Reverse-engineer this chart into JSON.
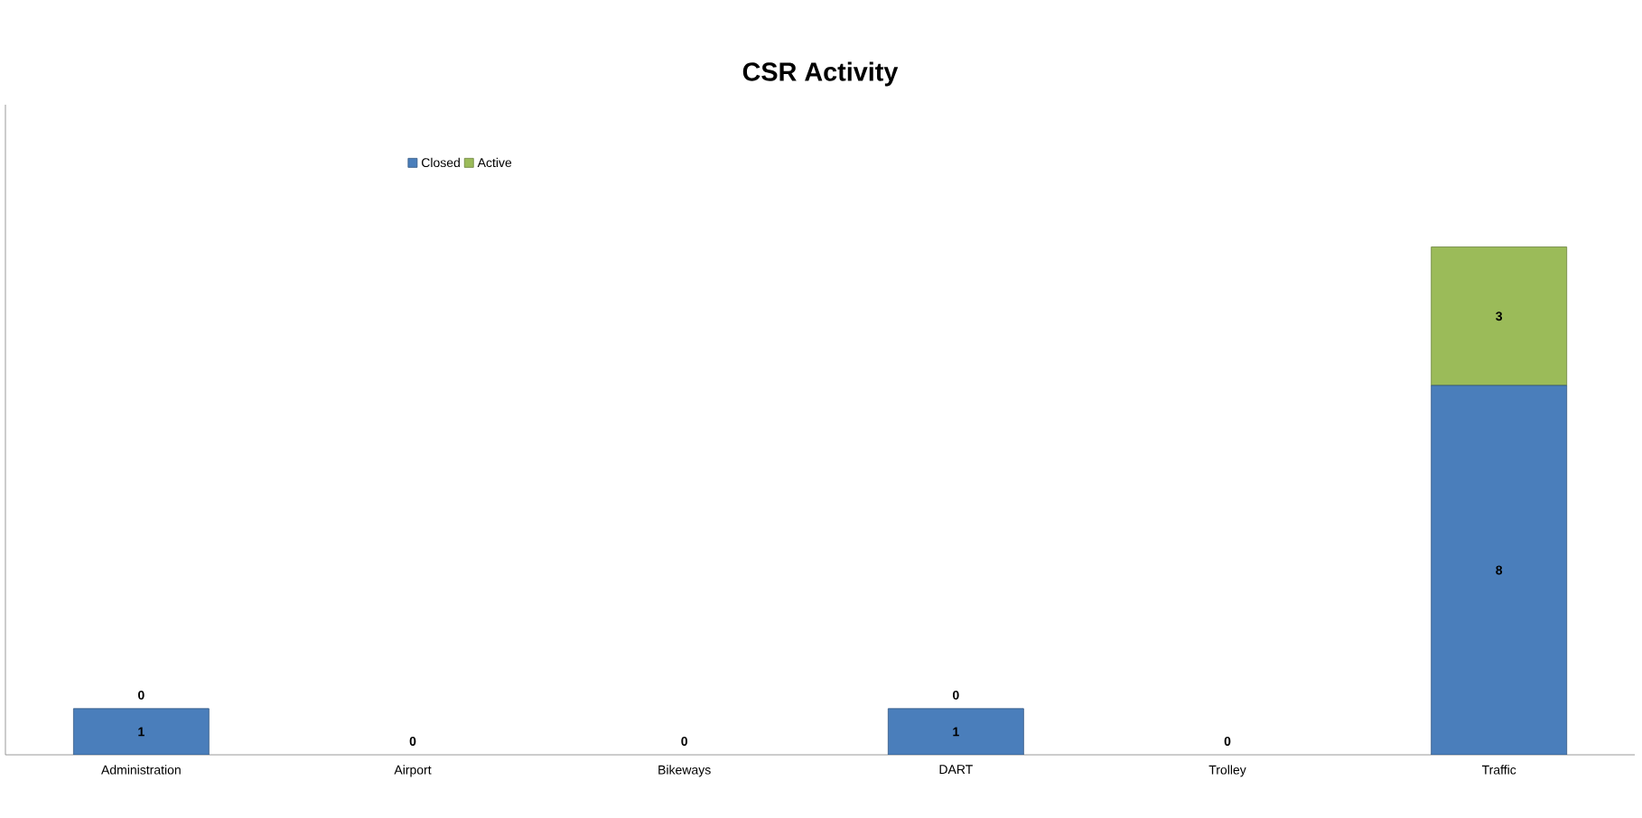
{
  "chart_data": {
    "type": "bar",
    "title": "CSR Activity",
    "stacked": true,
    "legend": "top",
    "tick_labels": "x",
    "categories": [
      "Administration",
      "Airport",
      "Bikeways",
      "DART",
      "Trolley",
      "Traffic"
    ],
    "series": [
      {
        "name": "Closed",
        "color": "#4a7ebb",
        "values": [
          1,
          0,
          0,
          1,
          0,
          8
        ],
        "value_labels": [
          "1",
          "0",
          "0",
          "1",
          "0",
          "8"
        ]
      },
      {
        "name": "Active",
        "color": "#9bbb59",
        "values": [
          0,
          0,
          0,
          0,
          0,
          3
        ],
        "value_labels": [
          "0",
          null,
          null,
          "0",
          null,
          "3"
        ]
      }
    ]
  }
}
